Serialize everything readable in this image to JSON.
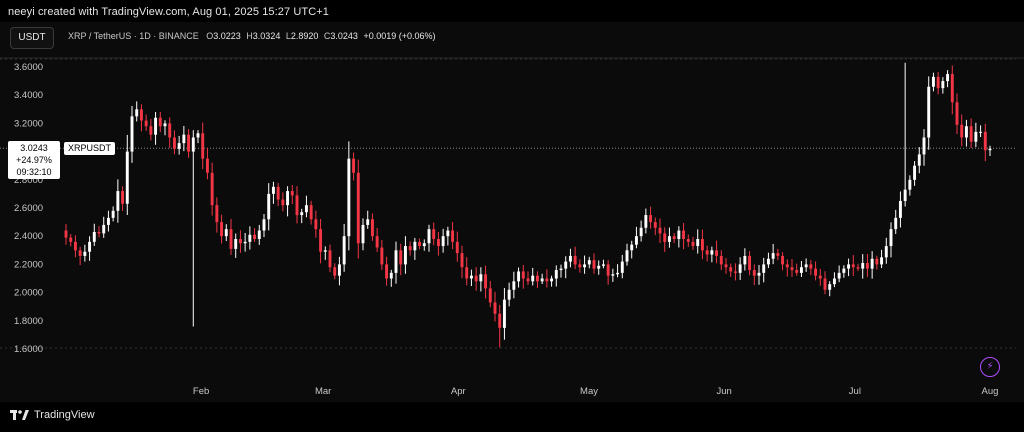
{
  "caption": "neeyi created with TradingView.com, Aug 01, 2025 15:27 UTC+1",
  "currency_button": "USDT",
  "legend": {
    "symbol": "XRP / TetherUS · 1D · BINANCE",
    "o_label": "O",
    "o": "3.0223",
    "h_label": "H",
    "h": "3.0324",
    "l_label": "L",
    "l": "2.8920",
    "c_label": "C",
    "c": "3.0243",
    "change": "+0.0019 (+0.06%)"
  },
  "last_price": {
    "price": "3.0243",
    "change": "+24.97%",
    "countdown": "09:32:10",
    "symbol": "XRPUSDT"
  },
  "brand": "TradingView",
  "colors": {
    "up": "#ffffff",
    "down": "#f23645",
    "grid": "#2a2a2a",
    "axis_text": "#c8c8c8",
    "last_line": "#9a9a9a"
  },
  "chart_data": {
    "type": "candlestick",
    "symbol": "XRPUSDT",
    "ylim": [
      1.5,
      3.7
    ],
    "y_ticks": [
      1.6,
      1.8,
      2.0,
      2.2,
      2.4,
      2.6,
      2.8,
      3.2,
      3.4,
      3.6
    ],
    "y_tick_labels": [
      "1.6000",
      "1.8000",
      "2.0000",
      "2.2000",
      "2.4000",
      "2.6000",
      "2.8000",
      "3.2000",
      "3.4000",
      "3.6000"
    ],
    "x_range": [
      "2025-01-01",
      "2025-08-01"
    ],
    "x_ticks": [
      {
        "label": "Feb",
        "day": 31
      },
      {
        "label": "Mar",
        "day": 59
      },
      {
        "label": "Apr",
        "day": 90
      },
      {
        "label": "May",
        "day": 120
      },
      {
        "label": "Jun",
        "day": 151
      },
      {
        "label": "Jul",
        "day": 181
      },
      {
        "label": "Aug",
        "day": 212
      }
    ],
    "last_close": 3.0243,
    "closes": [
      2.39,
      2.36,
      2.3,
      2.26,
      2.29,
      2.36,
      2.43,
      2.42,
      2.48,
      2.53,
      2.58,
      2.72,
      2.63,
      3.0,
      3.25,
      3.3,
      3.22,
      3.18,
      3.12,
      3.24,
      3.18,
      3.2,
      3.1,
      3.02,
      3.06,
      3.12,
      3.0,
      3.1,
      3.13,
      2.95,
      2.85,
      2.62,
      2.5,
      2.4,
      2.45,
      2.31,
      2.38,
      2.35,
      2.36,
      2.41,
      2.38,
      2.44,
      2.52,
      2.7,
      2.75,
      2.66,
      2.62,
      2.72,
      2.69,
      2.55,
      2.57,
      2.62,
      2.52,
      2.45,
      2.29,
      2.3,
      2.18,
      2.12,
      2.2,
      2.4,
      2.95,
      2.85,
      2.35,
      2.48,
      2.52,
      2.4,
      2.32,
      2.2,
      2.1,
      2.14,
      2.3,
      2.2,
      2.33,
      2.3,
      2.36,
      2.33,
      2.35,
      2.45,
      2.38,
      2.33,
      2.4,
      2.44,
      2.36,
      2.28,
      2.18,
      2.1,
      2.12,
      2.08,
      2.13,
      2.03,
      1.93,
      1.85,
      1.75,
      1.95,
      2.02,
      2.08,
      2.15,
      2.1,
      2.08,
      2.12,
      2.08,
      2.1,
      2.08,
      2.1,
      2.16,
      2.17,
      2.22,
      2.26,
      2.2,
      2.18,
      2.2,
      2.23,
      2.17,
      2.19,
      2.2,
      2.12,
      2.13,
      2.14,
      2.22,
      2.3,
      2.34,
      2.4,
      2.46,
      2.55,
      2.5,
      2.46,
      2.42,
      2.36,
      2.4,
      2.38,
      2.44,
      2.38,
      2.36,
      2.33,
      2.38,
      2.3,
      2.27,
      2.3,
      2.26,
      2.2,
      2.18,
      2.15,
      2.14,
      2.2,
      2.26,
      2.16,
      2.12,
      2.14,
      2.2,
      2.24,
      2.28,
      2.26,
      2.2,
      2.18,
      2.16,
      2.14,
      2.18,
      2.2,
      2.17,
      2.12,
      2.1,
      2.02,
      2.06,
      2.1,
      2.14,
      2.17,
      2.2,
      2.18,
      2.17,
      2.21,
      2.17,
      2.24,
      2.2,
      2.25,
      2.33,
      2.45,
      2.53,
      2.65,
      2.73,
      2.8,
      2.9,
      2.98,
      3.1,
      3.46,
      3.53,
      3.45,
      3.5,
      3.55,
      3.35,
      3.19,
      3.1,
      3.18,
      3.07,
      3.14,
      3.14,
      3.01,
      3.02
    ]
  }
}
